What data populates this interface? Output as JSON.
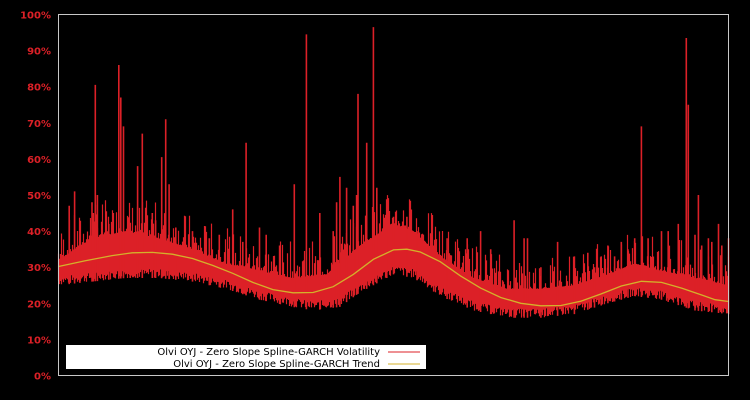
{
  "chart_data": {
    "type": "line",
    "title": "",
    "xlabel": "",
    "ylabel": "",
    "ylim": [
      0,
      100
    ],
    "yticks": [
      "0%",
      "10%",
      "20%",
      "30%",
      "40%",
      "50%",
      "60%",
      "70%",
      "80%",
      "90%",
      "100%"
    ],
    "grid": false,
    "legend_position": "lower left",
    "background": "#000000",
    "frame_color": "#c8c8c8",
    "tick_color": "#dc2027",
    "series": [
      {
        "name": "Olvi OYJ - Zero Slope Spline-GARCH Volatility",
        "color": "#dc2027",
        "floor": [
          [
            0,
            25
          ],
          [
            0.05,
            26
          ],
          [
            0.1,
            27
          ],
          [
            0.15,
            27
          ],
          [
            0.2,
            26
          ],
          [
            0.25,
            24
          ],
          [
            0.3,
            21
          ],
          [
            0.35,
            19
          ],
          [
            0.38,
            18
          ],
          [
            0.42,
            19
          ],
          [
            0.45,
            23
          ],
          [
            0.5,
            28
          ],
          [
            0.53,
            27
          ],
          [
            0.57,
            22
          ],
          [
            0.62,
            18
          ],
          [
            0.67,
            16
          ],
          [
            0.72,
            16
          ],
          [
            0.77,
            17
          ],
          [
            0.82,
            20
          ],
          [
            0.86,
            22
          ],
          [
            0.9,
            21
          ],
          [
            0.95,
            18
          ],
          [
            1.0,
            17
          ]
        ],
        "upper": [
          [
            0,
            32
          ],
          [
            0.05,
            38
          ],
          [
            0.1,
            40
          ],
          [
            0.15,
            38
          ],
          [
            0.2,
            35
          ],
          [
            0.25,
            31
          ],
          [
            0.3,
            29
          ],
          [
            0.35,
            27
          ],
          [
            0.4,
            28
          ],
          [
            0.45,
            36
          ],
          [
            0.5,
            42
          ],
          [
            0.53,
            40
          ],
          [
            0.57,
            33
          ],
          [
            0.62,
            27
          ],
          [
            0.67,
            24
          ],
          [
            0.72,
            24
          ],
          [
            0.77,
            25
          ],
          [
            0.82,
            28
          ],
          [
            0.86,
            31
          ],
          [
            0.9,
            29
          ],
          [
            0.95,
            27
          ],
          [
            1.0,
            25
          ]
        ],
        "spikes": [
          [
            0.016,
            47
          ],
          [
            0.024,
            51
          ],
          [
            0.032,
            42
          ],
          [
            0.05,
            48
          ],
          [
            0.052,
            45
          ],
          [
            0.055,
            80.5
          ],
          [
            0.058,
            50
          ],
          [
            0.075,
            42
          ],
          [
            0.09,
            86
          ],
          [
            0.093,
            77
          ],
          [
            0.097,
            69
          ],
          [
            0.107,
            40
          ],
          [
            0.118,
            58
          ],
          [
            0.125,
            67
          ],
          [
            0.14,
            45
          ],
          [
            0.145,
            43
          ],
          [
            0.154,
            60.5
          ],
          [
            0.16,
            71
          ],
          [
            0.165,
            53
          ],
          [
            0.175,
            41
          ],
          [
            0.2,
            40
          ],
          [
            0.225,
            38
          ],
          [
            0.24,
            39
          ],
          [
            0.26,
            46
          ],
          [
            0.275,
            37
          ],
          [
            0.28,
            64.5
          ],
          [
            0.3,
            41
          ],
          [
            0.31,
            39
          ],
          [
            0.33,
            36
          ],
          [
            0.352,
            53
          ],
          [
            0.37,
            94.5
          ],
          [
            0.39,
            45
          ],
          [
            0.41,
            40
          ],
          [
            0.415,
            48
          ],
          [
            0.42,
            55
          ],
          [
            0.43,
            52
          ],
          [
            0.44,
            47
          ],
          [
            0.445,
            50
          ],
          [
            0.447,
            78
          ],
          [
            0.46,
            64.5
          ],
          [
            0.47,
            96.5
          ],
          [
            0.475,
            52
          ],
          [
            0.49,
            48
          ],
          [
            0.5,
            44
          ],
          [
            0.52,
            44
          ],
          [
            0.535,
            40
          ],
          [
            0.56,
            36
          ],
          [
            0.58,
            38
          ],
          [
            0.61,
            38
          ],
          [
            0.63,
            40
          ],
          [
            0.645,
            35
          ],
          [
            0.68,
            43
          ],
          [
            0.695,
            38
          ],
          [
            0.7,
            38
          ],
          [
            0.72,
            30
          ],
          [
            0.745,
            37
          ],
          [
            0.77,
            33
          ],
          [
            0.79,
            34
          ],
          [
            0.8,
            30
          ],
          [
            0.81,
            33
          ],
          [
            0.82,
            36
          ],
          [
            0.83,
            33
          ],
          [
            0.84,
            37
          ],
          [
            0.85,
            35
          ],
          [
            0.86,
            38
          ],
          [
            0.87,
            69
          ],
          [
            0.88,
            38
          ],
          [
            0.9,
            40
          ],
          [
            0.91,
            40
          ],
          [
            0.925,
            42
          ],
          [
            0.937,
            93.5
          ],
          [
            0.94,
            75
          ],
          [
            0.95,
            39
          ],
          [
            0.955,
            50
          ],
          [
            0.96,
            36
          ],
          [
            0.97,
            38
          ],
          [
            0.975,
            37
          ],
          [
            0.985,
            42
          ],
          [
            0.99,
            36
          ],
          [
            1.0,
            38
          ]
        ]
      },
      {
        "name": "Olvi OYJ - Zero Slope Spline-GARCH Trend",
        "color": "#d4b12a",
        "points": [
          [
            0.0,
            30.2
          ],
          [
            0.04,
            31.8
          ],
          [
            0.08,
            33.2
          ],
          [
            0.11,
            34.0
          ],
          [
            0.14,
            34.1
          ],
          [
            0.17,
            33.6
          ],
          [
            0.2,
            32.4
          ],
          [
            0.23,
            30.5
          ],
          [
            0.26,
            28.3
          ],
          [
            0.29,
            25.8
          ],
          [
            0.32,
            23.8
          ],
          [
            0.35,
            22.9
          ],
          [
            0.38,
            23.0
          ],
          [
            0.41,
            24.6
          ],
          [
            0.44,
            28.0
          ],
          [
            0.47,
            32.2
          ],
          [
            0.5,
            34.8
          ],
          [
            0.52,
            35.0
          ],
          [
            0.54,
            34.2
          ],
          [
            0.57,
            31.5
          ],
          [
            0.6,
            27.6
          ],
          [
            0.63,
            24.2
          ],
          [
            0.66,
            21.6
          ],
          [
            0.69,
            20.0
          ],
          [
            0.72,
            19.3
          ],
          [
            0.75,
            19.4
          ],
          [
            0.78,
            20.6
          ],
          [
            0.81,
            22.6
          ],
          [
            0.84,
            24.8
          ],
          [
            0.87,
            26.1
          ],
          [
            0.9,
            25.8
          ],
          [
            0.93,
            24.2
          ],
          [
            0.96,
            22.3
          ],
          [
            0.98,
            21.0
          ],
          [
            1.0,
            20.5
          ]
        ]
      }
    ]
  },
  "legend": {
    "items": [
      {
        "label": "Olvi OYJ - Zero Slope Spline-GARCH Volatility",
        "color": "#dc2027"
      },
      {
        "label": "Olvi OYJ - Zero Slope Spline-GARCH Trend",
        "color": "#d4b12a"
      }
    ]
  }
}
